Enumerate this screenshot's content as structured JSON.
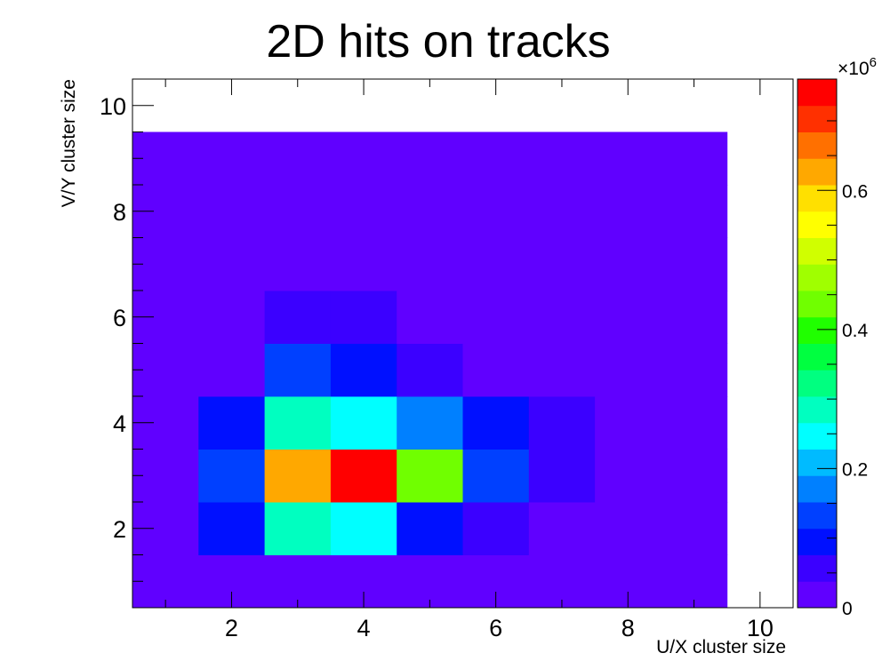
{
  "chart_data": {
    "type": "heatmap",
    "title": "2D hits on tracks",
    "xlabel": "U/X cluster size",
    "ylabel": "V/Y cluster size",
    "xlim": [
      0.5,
      10.5
    ],
    "ylim": [
      0.5,
      10.5
    ],
    "x_ticks": [
      2,
      4,
      6,
      8,
      10
    ],
    "y_ticks": [
      2,
      4,
      6,
      8,
      10
    ],
    "z_ticks": [
      0,
      0.2,
      0.4,
      0.6
    ],
    "z_multiplier": "×10^6",
    "z_range": [
      0,
      0.76
    ],
    "z_units": "millions",
    "palette": [
      "#6000ff",
      "#3b00ff",
      "#0010ff",
      "#0040ff",
      "#0080ff",
      "#00bbff",
      "#00ffff",
      "#00ffc0",
      "#00ff80",
      "#00ff40",
      "#20ff00",
      "#70ff00",
      "#a0ff00",
      "#d0ff00",
      "#ffff00",
      "#ffe000",
      "#ffa800",
      "#ff7000",
      "#ff3000",
      "#ff0000"
    ],
    "grid": false,
    "x": [
      1,
      2,
      3,
      4,
      5,
      6,
      7,
      8,
      9
    ],
    "y": [
      1,
      2,
      3,
      4,
      5,
      6,
      7,
      8,
      9
    ],
    "z": [
      [
        0.005,
        0.005,
        0.005,
        0.005,
        0.005,
        0.005,
        0.005,
        0.005,
        0.005
      ],
      [
        0.005,
        0.1,
        0.28,
        0.25,
        0.1,
        0.05,
        0.005,
        0.005,
        0.005
      ],
      [
        0.005,
        0.13,
        0.62,
        0.75,
        0.44,
        0.14,
        0.05,
        0.005,
        0.005
      ],
      [
        0.005,
        0.1,
        0.28,
        0.25,
        0.18,
        0.1,
        0.05,
        0.005,
        0.005
      ],
      [
        0.005,
        0.005,
        0.14,
        0.1,
        0.06,
        0.005,
        0.005,
        0.005,
        0.005
      ],
      [
        0.005,
        0.005,
        0.05,
        0.05,
        0.005,
        0.005,
        0.005,
        0.005,
        0.005
      ],
      [
        0.005,
        0.005,
        0.005,
        0.005,
        0.005,
        0.005,
        0.005,
        0.005,
        0.005
      ],
      [
        0.005,
        0.005,
        0.005,
        0.005,
        0.005,
        0.005,
        0.005,
        0.005,
        0.005
      ],
      [
        0.005,
        0.005,
        0.005,
        0.005,
        0.005,
        0.005,
        0.005,
        0.005,
        0.005
      ]
    ]
  }
}
